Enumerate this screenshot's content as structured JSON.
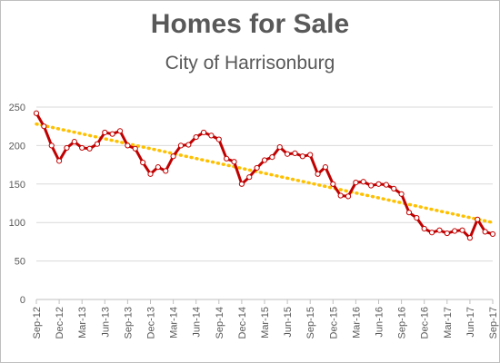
{
  "chart_data": {
    "type": "line",
    "title": "Homes for Sale",
    "subtitle": "City of Harrisonburg",
    "xlabel": "",
    "ylabel": "",
    "ylim": [
      0,
      250
    ],
    "yticks": [
      0,
      50,
      100,
      150,
      200,
      250
    ],
    "x_tick_labels": [
      "Sep-12",
      "Dec-12",
      "Mar-13",
      "Jun-13",
      "Sep-13",
      "Dec-13",
      "Mar-14",
      "Jun-14",
      "Sep-14",
      "Dec-14",
      "Mar-15",
      "Jun-15",
      "Sep-15",
      "Dec-15",
      "Mar-16",
      "Jun-16",
      "Sep-16",
      "Dec-16",
      "Mar-17",
      "Jun-17",
      "Sep-17"
    ],
    "grid": "horizontal",
    "legend": "none",
    "series": [
      {
        "type": "line",
        "color": "#c00000",
        "values": [
          242,
          225,
          200,
          180,
          197,
          205,
          197,
          196,
          202,
          217,
          215,
          219,
          200,
          196,
          178,
          163,
          172,
          167,
          186,
          200,
          201,
          211,
          217,
          213,
          208,
          183,
          179,
          150,
          159,
          171,
          181,
          185,
          198,
          189,
          190,
          186,
          188,
          163,
          172,
          150,
          135,
          134,
          152,
          153,
          148,
          150,
          149,
          144,
          137,
          113,
          106,
          92,
          87,
          90,
          86,
          89,
          90,
          80,
          104,
          88,
          85
        ]
      },
      {
        "type": "trendline",
        "color": "#ffc000",
        "start": 228,
        "end": 100
      }
    ]
  }
}
